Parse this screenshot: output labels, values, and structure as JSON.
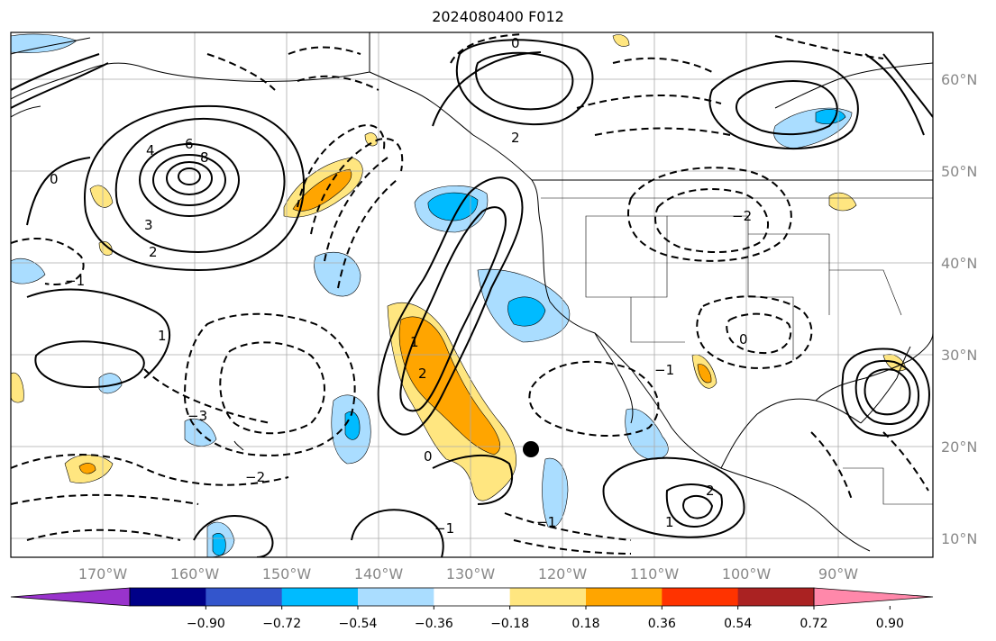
{
  "title": "2024080400 F012",
  "lat_labels": [
    "60°N",
    "50°N",
    "40°N",
    "30°N",
    "20°N",
    "10°N"
  ],
  "lon_labels": [
    "170°W",
    "160°W",
    "150°W",
    "140°W",
    "130°W",
    "120°W",
    "110°W",
    "100°W",
    "90°W"
  ],
  "colorbar": {
    "colors": [
      "#9933cc",
      "#000088",
      "#3355cc",
      "#00bbff",
      "#aaddff",
      "#ffffff",
      "#ffe680",
      "#ffa500",
      "#ff3300",
      "#aa2222",
      "#ff88aa"
    ],
    "ticks": [
      "−0.90",
      "−0.72",
      "−0.54",
      "−0.36",
      "−0.18",
      "0.18",
      "0.36",
      "0.54",
      "0.72",
      "0.90"
    ]
  },
  "contour_labels": [
    "6",
    "8",
    "4",
    "3",
    "2",
    "1",
    "0",
    "−1",
    "−2",
    "−3",
    "2",
    "0",
    "1",
    "−1",
    "2",
    "0",
    "−1",
    "2",
    "−2",
    "0",
    "1",
    "−1"
  ]
}
